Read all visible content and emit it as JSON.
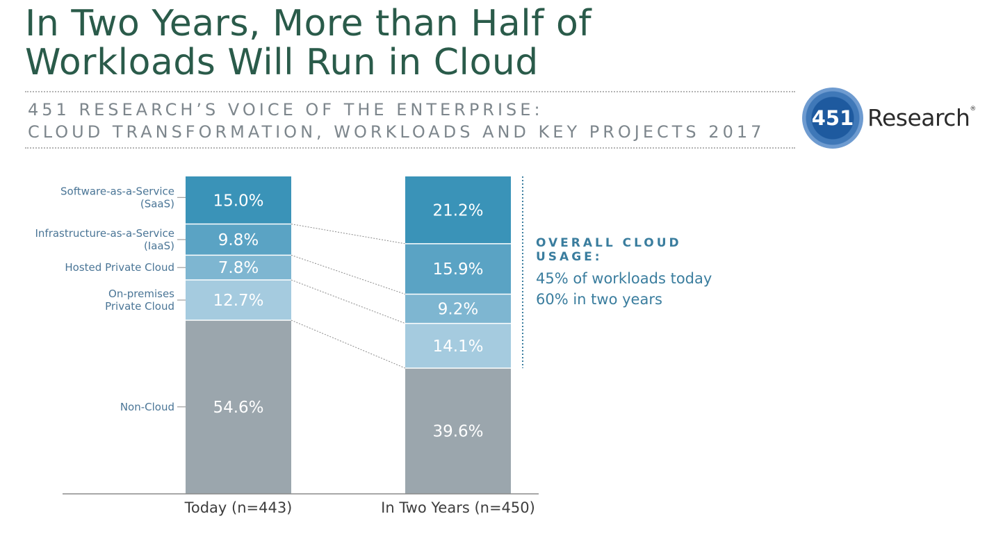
{
  "header": {
    "title_line1": "In Two Years, More than Half of",
    "title_line2": "Workloads Will Run in Cloud",
    "subtitle_line1": "451 RESEARCH’S VOICE OF THE ENTERPRISE:",
    "subtitle_line2": "CLOUD TRANSFORMATION, WORKLOADS AND KEY PROJECTS 2017"
  },
  "logo": {
    "mark": "451",
    "word": "Research",
    "reg": "®"
  },
  "annotation": {
    "heading": "OVERALL CLOUD USAGE:",
    "line1": "45% of workloads today",
    "line2": "60% in two years"
  },
  "chart_data": {
    "type": "bar",
    "stacked": true,
    "categories": [
      "Today (n=443)",
      "In Two Years (n=450)"
    ],
    "series": [
      {
        "name": "Software-as-a-Service (SaaS)",
        "label_lines": [
          "Software-as-a-Service",
          "(SaaS)"
        ],
        "values": [
          15.0,
          21.2
        ],
        "labels": [
          "15.0%",
          "21.2%"
        ],
        "color": "#3a93b8"
      },
      {
        "name": "Infrastructure-as-a-Service (IaaS)",
        "label_lines": [
          "Infrastructure-as-a-Service",
          "(IaaS)"
        ],
        "values": [
          9.8,
          15.9
        ],
        "labels": [
          "9.8%",
          "15.9%"
        ],
        "color": "#5aa3c4"
      },
      {
        "name": "Hosted Private Cloud",
        "label_lines": [
          "Hosted Private Cloud"
        ],
        "values": [
          7.8,
          9.2
        ],
        "labels": [
          "7.8%",
          "9.2%"
        ],
        "color": "#7eb6d1"
      },
      {
        "name": "On-premises Private Cloud",
        "label_lines": [
          "On-premises",
          "Private Cloud"
        ],
        "values": [
          12.7,
          14.1
        ],
        "labels": [
          "12.7%",
          "14.1%"
        ],
        "color": "#a5cbdf"
      },
      {
        "name": "Non-Cloud",
        "label_lines": [
          "Non-Cloud"
        ],
        "values": [
          54.6,
          39.6
        ],
        "labels": [
          "54.6%",
          "39.6%"
        ],
        "color": "#9ba6ad"
      }
    ],
    "ylim": [
      0,
      100
    ],
    "legend": "left",
    "grid": false
  }
}
